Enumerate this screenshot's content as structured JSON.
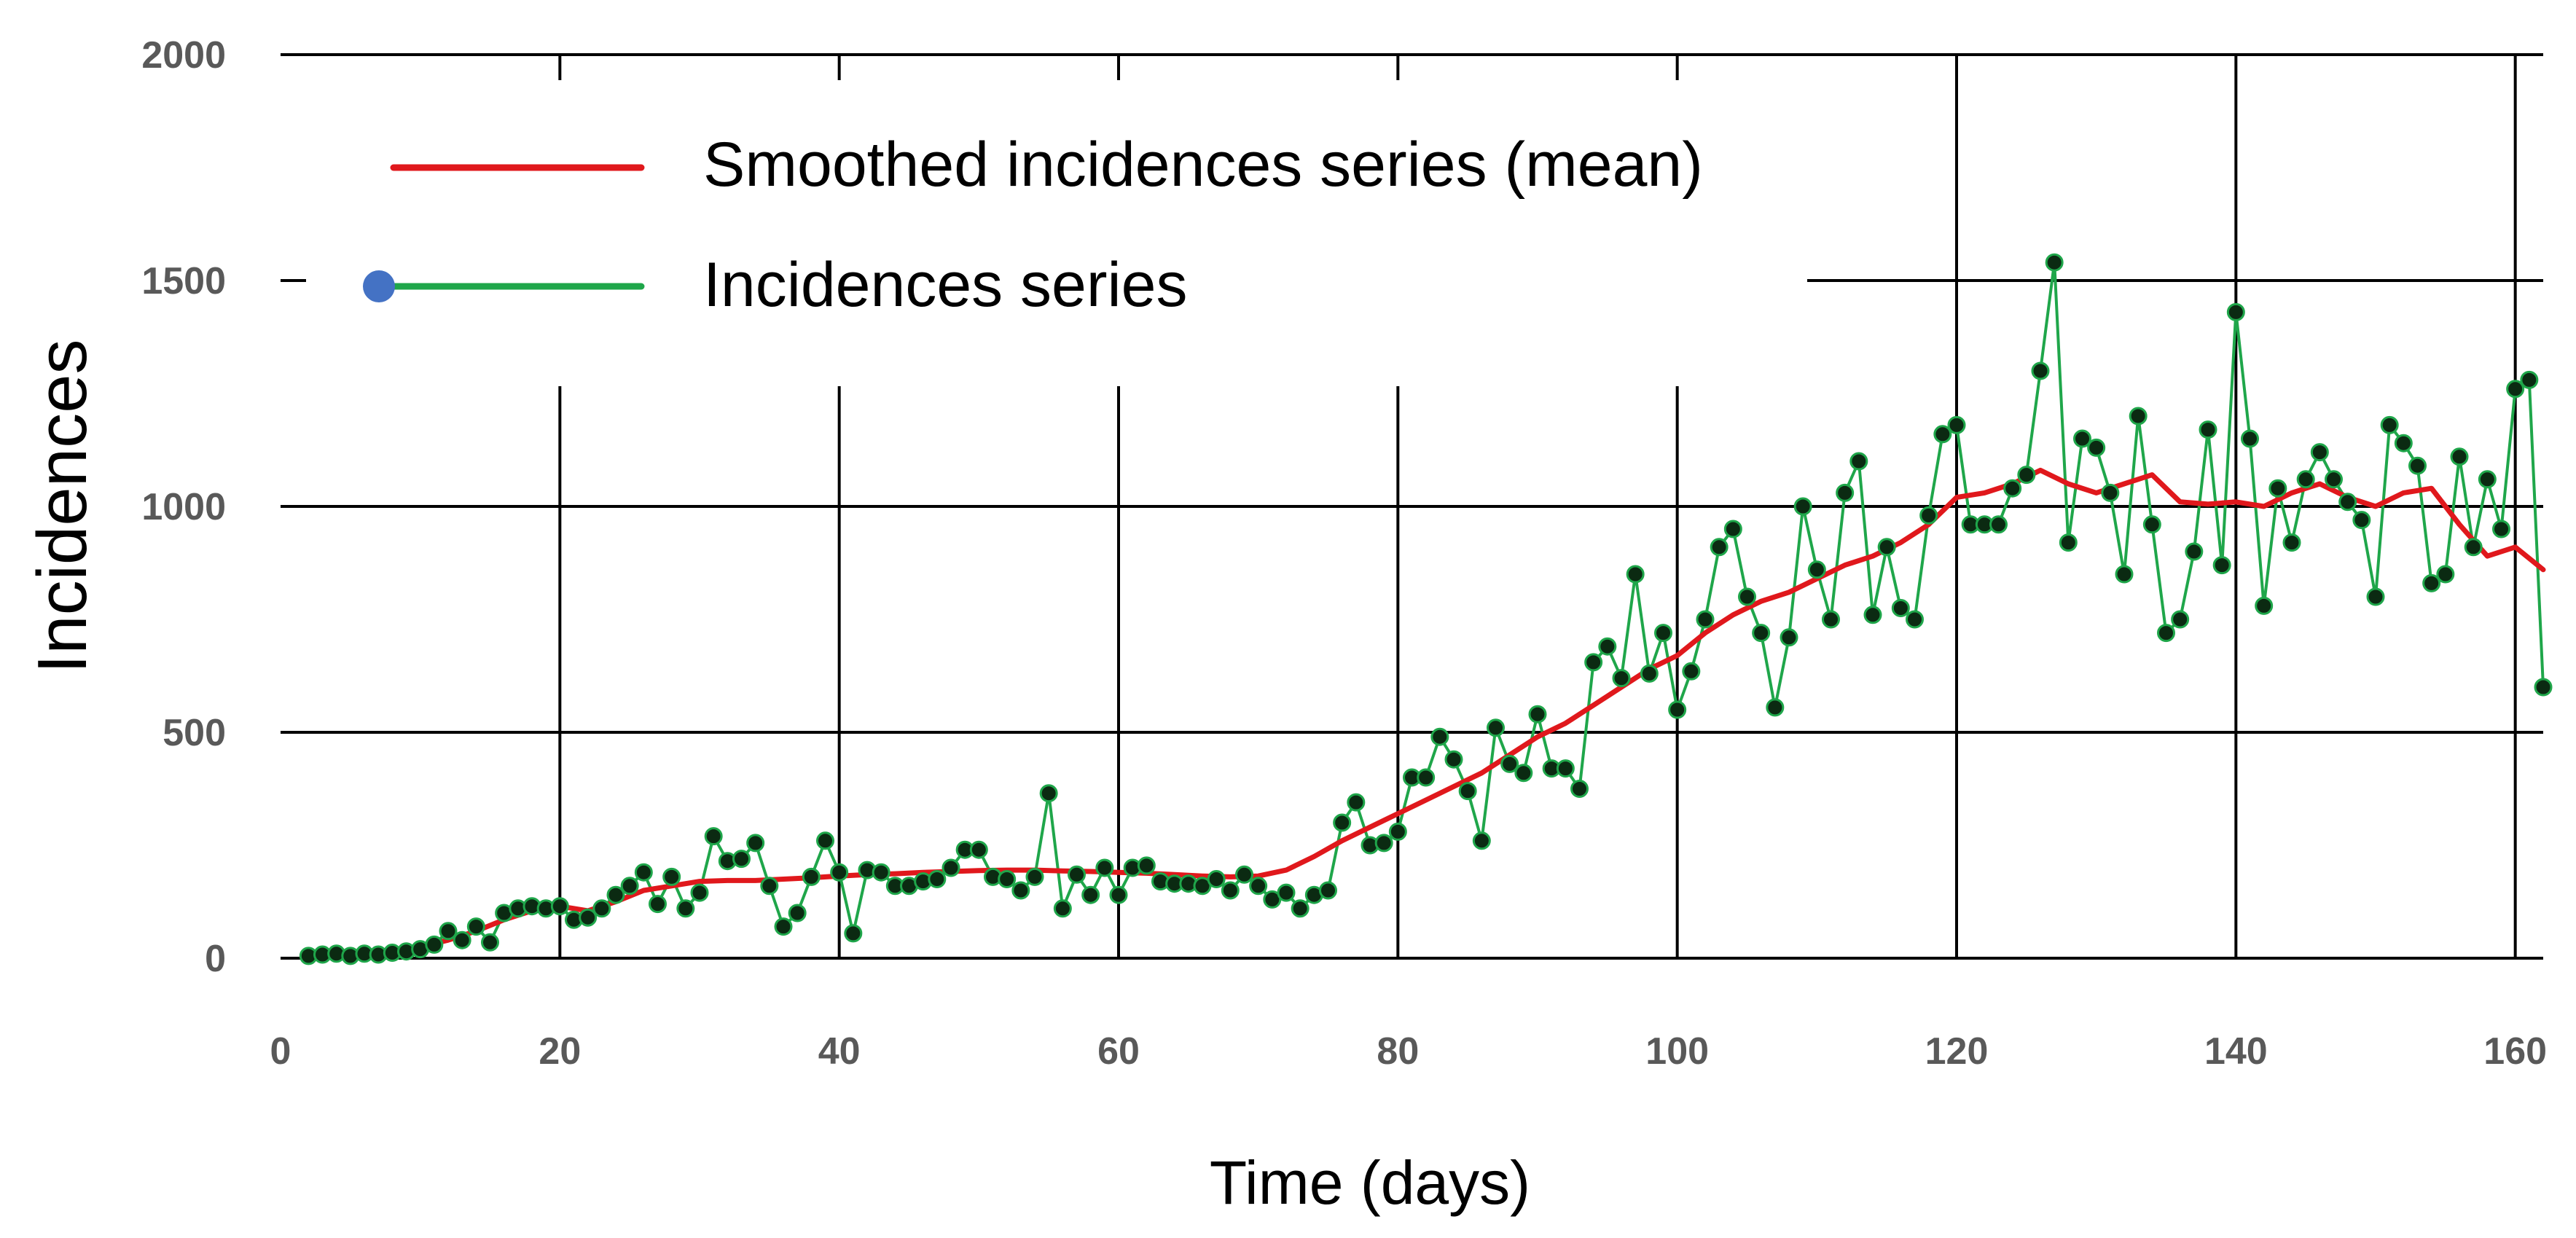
{
  "colors": {
    "smoothed": "#e0181c",
    "series": "#1fa64a",
    "marker": "#0b2a12",
    "legend_marker": "#4472c4",
    "grid": "#000000",
    "tick": "#595959"
  },
  "chart_data": {
    "type": "line",
    "title": "",
    "xlabel": "Time (days)",
    "ylabel": "Incidences",
    "xlim": [
      0,
      162
    ],
    "ylim": [
      0,
      2000
    ],
    "xticks": [
      0,
      20,
      40,
      60,
      80,
      100,
      120,
      140,
      160
    ],
    "yticks": [
      0,
      500,
      1000,
      1500,
      2000
    ],
    "xtick_labels": [
      "0",
      "20",
      "40",
      "60",
      "80",
      "100",
      "120",
      "140",
      "160"
    ],
    "ytick_labels": [
      "0",
      "500",
      "1000",
      "1500",
      "2000"
    ],
    "grid": true,
    "legend_position": "top-left",
    "series": [
      {
        "name": "Smoothed incidences series (mean)",
        "style": "line",
        "x": [
          2,
          4,
          6,
          8,
          10,
          12,
          14,
          16,
          18,
          20,
          22,
          24,
          26,
          28,
          30,
          32,
          34,
          36,
          38,
          40,
          42,
          44,
          46,
          48,
          50,
          52,
          54,
          56,
          58,
          60,
          62,
          64,
          66,
          68,
          70,
          72,
          74,
          76,
          78,
          80,
          82,
          84,
          86,
          88,
          90,
          92,
          94,
          96,
          98,
          100,
          102,
          104,
          106,
          108,
          110,
          112,
          114,
          116,
          118,
          120,
          122,
          124,
          126,
          128,
          130,
          132,
          134,
          136,
          138,
          140,
          142,
          144,
          146,
          148,
          150,
          152,
          154,
          156,
          158,
          160,
          162
        ],
        "values": [
          5,
          8,
          12,
          18,
          25,
          40,
          60,
          85,
          105,
          115,
          105,
          125,
          150,
          160,
          170,
          172,
          172,
          175,
          178,
          182,
          185,
          187,
          190,
          192,
          194,
          195,
          195,
          193,
          192,
          190,
          188,
          185,
          182,
          180,
          182,
          195,
          225,
          260,
          290,
          320,
          350,
          380,
          410,
          450,
          490,
          520,
          560,
          600,
          640,
          670,
          720,
          760,
          790,
          810,
          840,
          870,
          890,
          920,
          960,
          1020,
          1030,
          1050,
          1080,
          1050,
          1030,
          1050,
          1070,
          1010,
          1005,
          1010,
          1000,
          1030,
          1050,
          1020,
          1000,
          1030,
          1040,
          960,
          890,
          910,
          860
        ]
      },
      {
        "name": "Incidences series",
        "style": "line-marker",
        "x": [
          2,
          3,
          4,
          5,
          6,
          7,
          8,
          9,
          10,
          11,
          12,
          13,
          14,
          15,
          16,
          17,
          18,
          19,
          20,
          21,
          22,
          23,
          24,
          25,
          26,
          27,
          28,
          29,
          30,
          31,
          32,
          33,
          34,
          35,
          36,
          37,
          38,
          39,
          40,
          41,
          42,
          43,
          44,
          45,
          46,
          47,
          48,
          49,
          50,
          51,
          52,
          53,
          54,
          55,
          56,
          57,
          58,
          59,
          60,
          61,
          62,
          63,
          64,
          65,
          66,
          67,
          68,
          69,
          70,
          71,
          72,
          73,
          74,
          75,
          76,
          77,
          78,
          79,
          80,
          81,
          82,
          83,
          84,
          85,
          86,
          87,
          88,
          89,
          90,
          91,
          92,
          93,
          94,
          95,
          96,
          97,
          98,
          99,
          100,
          101,
          102,
          103,
          104,
          105,
          106,
          107,
          108,
          109,
          110,
          111,
          112,
          113,
          114,
          115,
          116,
          117,
          118,
          119,
          120,
          121,
          122,
          123,
          124,
          125,
          126,
          127,
          128,
          129,
          130,
          131,
          132,
          133,
          134,
          135,
          136,
          137,
          138,
          139,
          140,
          141,
          142,
          143,
          144,
          145,
          146,
          147,
          148,
          149,
          150,
          151,
          152,
          153,
          154,
          155,
          156,
          157,
          158,
          159,
          160,
          161,
          162
        ],
        "values": [
          5,
          8,
          10,
          5,
          10,
          8,
          12,
          15,
          20,
          30,
          60,
          40,
          70,
          35,
          100,
          110,
          115,
          110,
          115,
          85,
          90,
          110,
          140,
          160,
          190,
          120,
          180,
          110,
          145,
          270,
          215,
          220,
          255,
          160,
          70,
          100,
          180,
          260,
          190,
          55,
          195,
          190,
          160,
          160,
          170,
          175,
          200,
          240,
          240,
          180,
          175,
          150,
          180,
          365,
          110,
          185,
          140,
          200,
          140,
          200,
          205,
          170,
          165,
          165,
          160,
          175,
          150,
          185,
          160,
          130,
          145,
          110,
          140,
          150,
          300,
          345,
          250,
          255,
          280,
          400,
          400,
          490,
          440,
          370,
          260,
          510,
          430,
          410,
          540,
          420,
          420,
          375,
          655,
          690,
          620,
          850,
          630,
          720,
          550,
          635,
          750,
          910,
          950,
          800,
          720,
          555,
          710,
          1000,
          860,
          750,
          1030,
          1100,
          760,
          910,
          775,
          750,
          980,
          1160,
          1180,
          960,
          960,
          960,
          1040,
          1070,
          1300,
          1540,
          920,
          1150,
          1130,
          1030,
          850,
          1200,
          960,
          720,
          750,
          900,
          1170,
          870,
          1430,
          1150,
          780,
          1040,
          920,
          1060,
          1120,
          1060,
          1010,
          970,
          800,
          1180,
          1140,
          1090,
          830,
          850,
          1110,
          910,
          1060,
          950,
          1260,
          1280,
          600
        ]
      }
    ]
  }
}
